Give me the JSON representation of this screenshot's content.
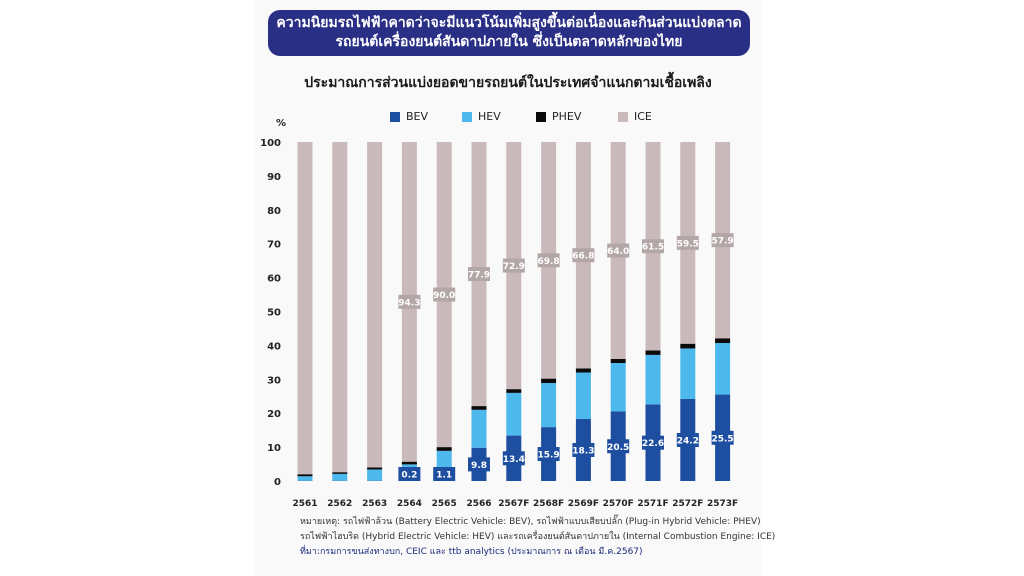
{
  "banner": {
    "line1": "ความนิยมรถไฟฟ้าคาดว่าจะมีแนวโน้มเพิ่มสูงขึ้นต่อเนื่องและกินส่วนแบ่งตลาด",
    "line2": "รถยนต์เครื่องยนต์สันดาปภายใน ซึ่งเป็นตลาดหลักของไทย"
  },
  "notes": {
    "line1": "หมายเหตุ: รถไฟฟ้าล้วน (Battery Electric Vehicle: BEV), รถไฟฟ้าแบบเสียบปลั๊ก (Plug-in Hybrid Vehicle: PHEV)",
    "line2": "รถไฟฟ้าไฮบริด (Hybrid Electric Vehicle: HEV) และรถเครื่องยนต์สันดาปภายใน (Internal Combustion Engine: ICE)",
    "source": "ที่มา:กรมการขนส่งทางบก, CEIC และ ttb analytics (ประมาณการ ณ เดือน มี.ค.2567)"
  },
  "chart_data": {
    "type": "bar",
    "stacked": true,
    "title": "ประมาณการส่วนแบ่งยอดขายรถยนต์ในประเทศจำแนกตามเชื้อเพลิง",
    "ylabel": "%",
    "ylim": [
      0,
      100
    ],
    "yticks": [
      0,
      10,
      20,
      30,
      40,
      50,
      60,
      70,
      80,
      90,
      100
    ],
    "grid": false,
    "legend_position": "top",
    "categories": [
      "2561",
      "2562",
      "2563",
      "2564",
      "2565",
      "2566",
      "2567F",
      "2568F",
      "2569F",
      "2570F",
      "2571F",
      "2572F",
      "2573F"
    ],
    "series": [
      {
        "name": "BEV",
        "color": "#1d4ea0",
        "values": [
          0.1,
          0.1,
          0.1,
          0.2,
          1.1,
          9.8,
          13.4,
          15.9,
          18.3,
          20.5,
          22.6,
          24.2,
          25.5
        ]
      },
      {
        "name": "HEV",
        "color": "#4db8ec",
        "values": [
          1.3,
          2.0,
          3.3,
          4.7,
          7.8,
          11.2,
          12.6,
          13.0,
          13.7,
          14.3,
          14.6,
          14.9,
          15.2
        ]
      },
      {
        "name": "PHEV",
        "color": "#0a0a0a",
        "values": [
          0.6,
          0.5,
          0.6,
          0.8,
          1.1,
          1.1,
          1.1,
          1.3,
          1.2,
          1.2,
          1.3,
          1.4,
          1.4
        ]
      },
      {
        "name": "ICE",
        "color": "#c9b9ba",
        "values": [
          98.0,
          97.4,
          96.0,
          94.3,
          90.0,
          77.9,
          72.9,
          69.8,
          66.8,
          64.0,
          61.5,
          59.5,
          57.9
        ]
      }
    ],
    "ice_labels": [
      "",
      "",
      "",
      "94.3",
      "90.0",
      "77.9",
      "72.9",
      "69.8",
      "66.8",
      "64.0",
      "61.5",
      "59.5",
      "57.9"
    ],
    "bev_labels": [
      "",
      "",
      "",
      "0.2",
      "1.1",
      "9.8",
      "13.4",
      "15.9",
      "18.3",
      "20.5",
      "22.6",
      "24.2",
      "25.5"
    ]
  }
}
